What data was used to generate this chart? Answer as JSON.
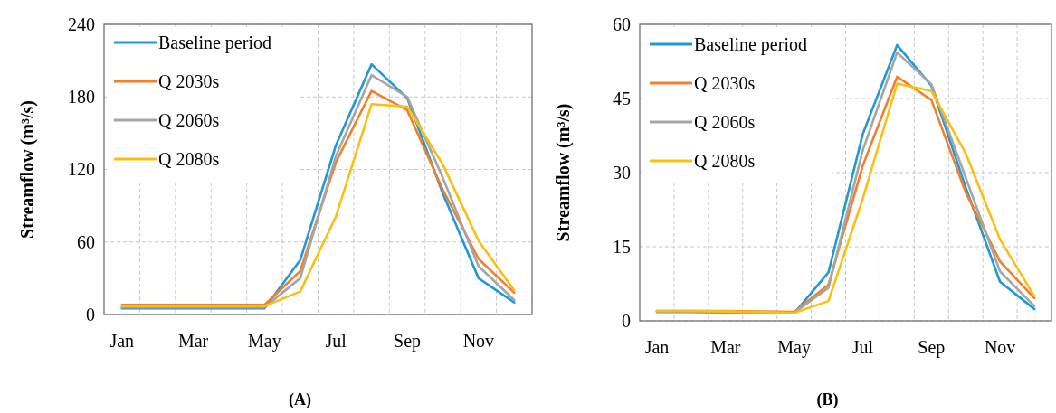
{
  "chart_data": [
    {
      "type": "line",
      "ylabel": "Streamflow (m³/s)",
      "annotations": [
        "(A)"
      ],
      "categories": [
        "Jan",
        null,
        "Mar",
        null,
        "May",
        null,
        "Jul",
        null,
        "Sep",
        null,
        "Nov",
        null
      ],
      "ylim": [
        0,
        240
      ],
      "yticks": [
        0,
        60,
        120,
        180,
        240
      ],
      "grid": true,
      "legend": "top left",
      "marker": "none",
      "line_style": "solid",
      "series": [
        {
          "name": "Baseline period",
          "color": "#1f9ad6",
          "values": [
            5,
            5,
            5,
            5,
            5,
            45,
            140,
            207,
            179,
            100,
            30,
            10
          ]
        },
        {
          "name": "Q 2030s",
          "color": "#f47f2a",
          "values": [
            8,
            8,
            8,
            8,
            8,
            36,
            126,
            185,
            169,
            103,
            46,
            18
          ]
        },
        {
          "name": "Q 2060s",
          "color": "#a5a5a5",
          "values": [
            6,
            6,
            6,
            6,
            6,
            30,
            131,
            198,
            180,
            113,
            40,
            12
          ]
        },
        {
          "name": "Q 2080s",
          "color": "#fcbf0f",
          "values": [
            7,
            7,
            7,
            7,
            7,
            19,
            81,
            174,
            172,
            124,
            61,
            20
          ]
        }
      ]
    },
    {
      "type": "line",
      "ylabel": "Streamflow (m³/s)",
      "annotations": [
        "(B)"
      ],
      "categories": [
        "Jan",
        null,
        "Mar",
        null,
        "May",
        null,
        "Jul",
        null,
        "Sep",
        null,
        "Nov",
        null
      ],
      "ylim": [
        0,
        60
      ],
      "yticks": [
        0,
        15,
        30,
        45,
        60
      ],
      "grid": true,
      "legend": "top left",
      "marker": "none",
      "line_style": "solid",
      "series": [
        {
          "name": "Baseline period",
          "color": "#1f9ad6",
          "values": [
            1.8,
            1.8,
            1.7,
            1.6,
            1.5,
            9.8,
            37.8,
            55.8,
            47.6,
            27,
            7.9,
            2.4
          ]
        },
        {
          "name": "Q 2030s",
          "color": "#f47f2a",
          "values": [
            2,
            2,
            2,
            1.9,
            1.8,
            7.3,
            31.4,
            49.4,
            44.7,
            26,
            12,
            4.6
          ]
        },
        {
          "name": "Q 2060s",
          "color": "#a5a5a5",
          "values": [
            1.9,
            1.9,
            1.8,
            1.7,
            1.6,
            6.7,
            34.5,
            54.3,
            47.9,
            29,
            10,
            3
          ]
        },
        {
          "name": "Q 2080s",
          "color": "#fcbf0f",
          "values": [
            2,
            2,
            1.9,
            1.8,
            1.6,
            4,
            24.7,
            48,
            46.5,
            33.9,
            16.5,
            5
          ]
        }
      ]
    }
  ]
}
